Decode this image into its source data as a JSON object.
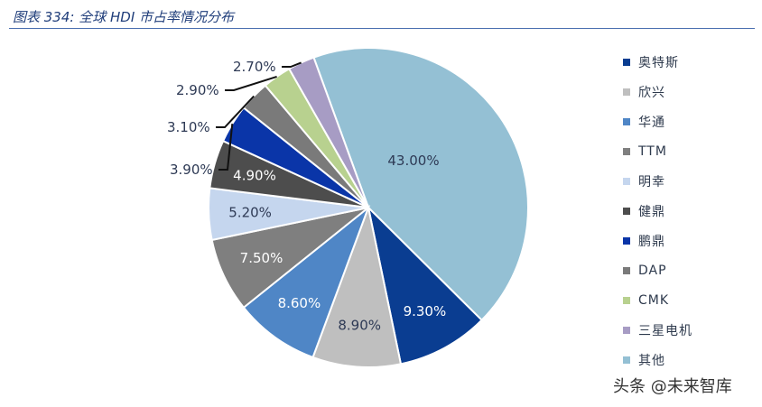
{
  "header": {
    "title": "图表 334:  全球 HDI 市占率情况分布"
  },
  "chart_data": {
    "type": "pie",
    "slices": [
      {
        "name": "奥特斯",
        "value": 9.3,
        "label": "9.30%",
        "color": "#0a3d91"
      },
      {
        "name": "欣兴",
        "value": 8.9,
        "label": "8.90%",
        "color": "#bfbfbf"
      },
      {
        "name": "华通",
        "value": 8.6,
        "label": "8.60%",
        "color": "#4f86c6"
      },
      {
        "name": "TTM",
        "value": 7.5,
        "label": "7.50%",
        "color": "#7f7f7f"
      },
      {
        "name": "明幸",
        "value": 5.2,
        "label": "5.20%",
        "color": "#c5d6ee"
      },
      {
        "name": "健鼎",
        "value": 4.9,
        "label": "4.90%",
        "color": "#4d4d4d"
      },
      {
        "name": "鹏鼎",
        "value": 3.9,
        "label": "3.90%",
        "color": "#0a35a8"
      },
      {
        "name": "DAP",
        "value": 3.1,
        "label": "3.10%",
        "color": "#7a7a7a"
      },
      {
        "name": "CMK",
        "value": 2.9,
        "label": "2.90%",
        "color": "#b8d18f"
      },
      {
        "name": "三星电机",
        "value": 2.7,
        "label": "2.70%",
        "color": "#a79cc4"
      },
      {
        "name": "其他",
        "value": 43.0,
        "label": "43.00%",
        "color": "#94c0d4"
      }
    ],
    "legend_position": "right"
  },
  "watermark": "头条 @未来智库"
}
